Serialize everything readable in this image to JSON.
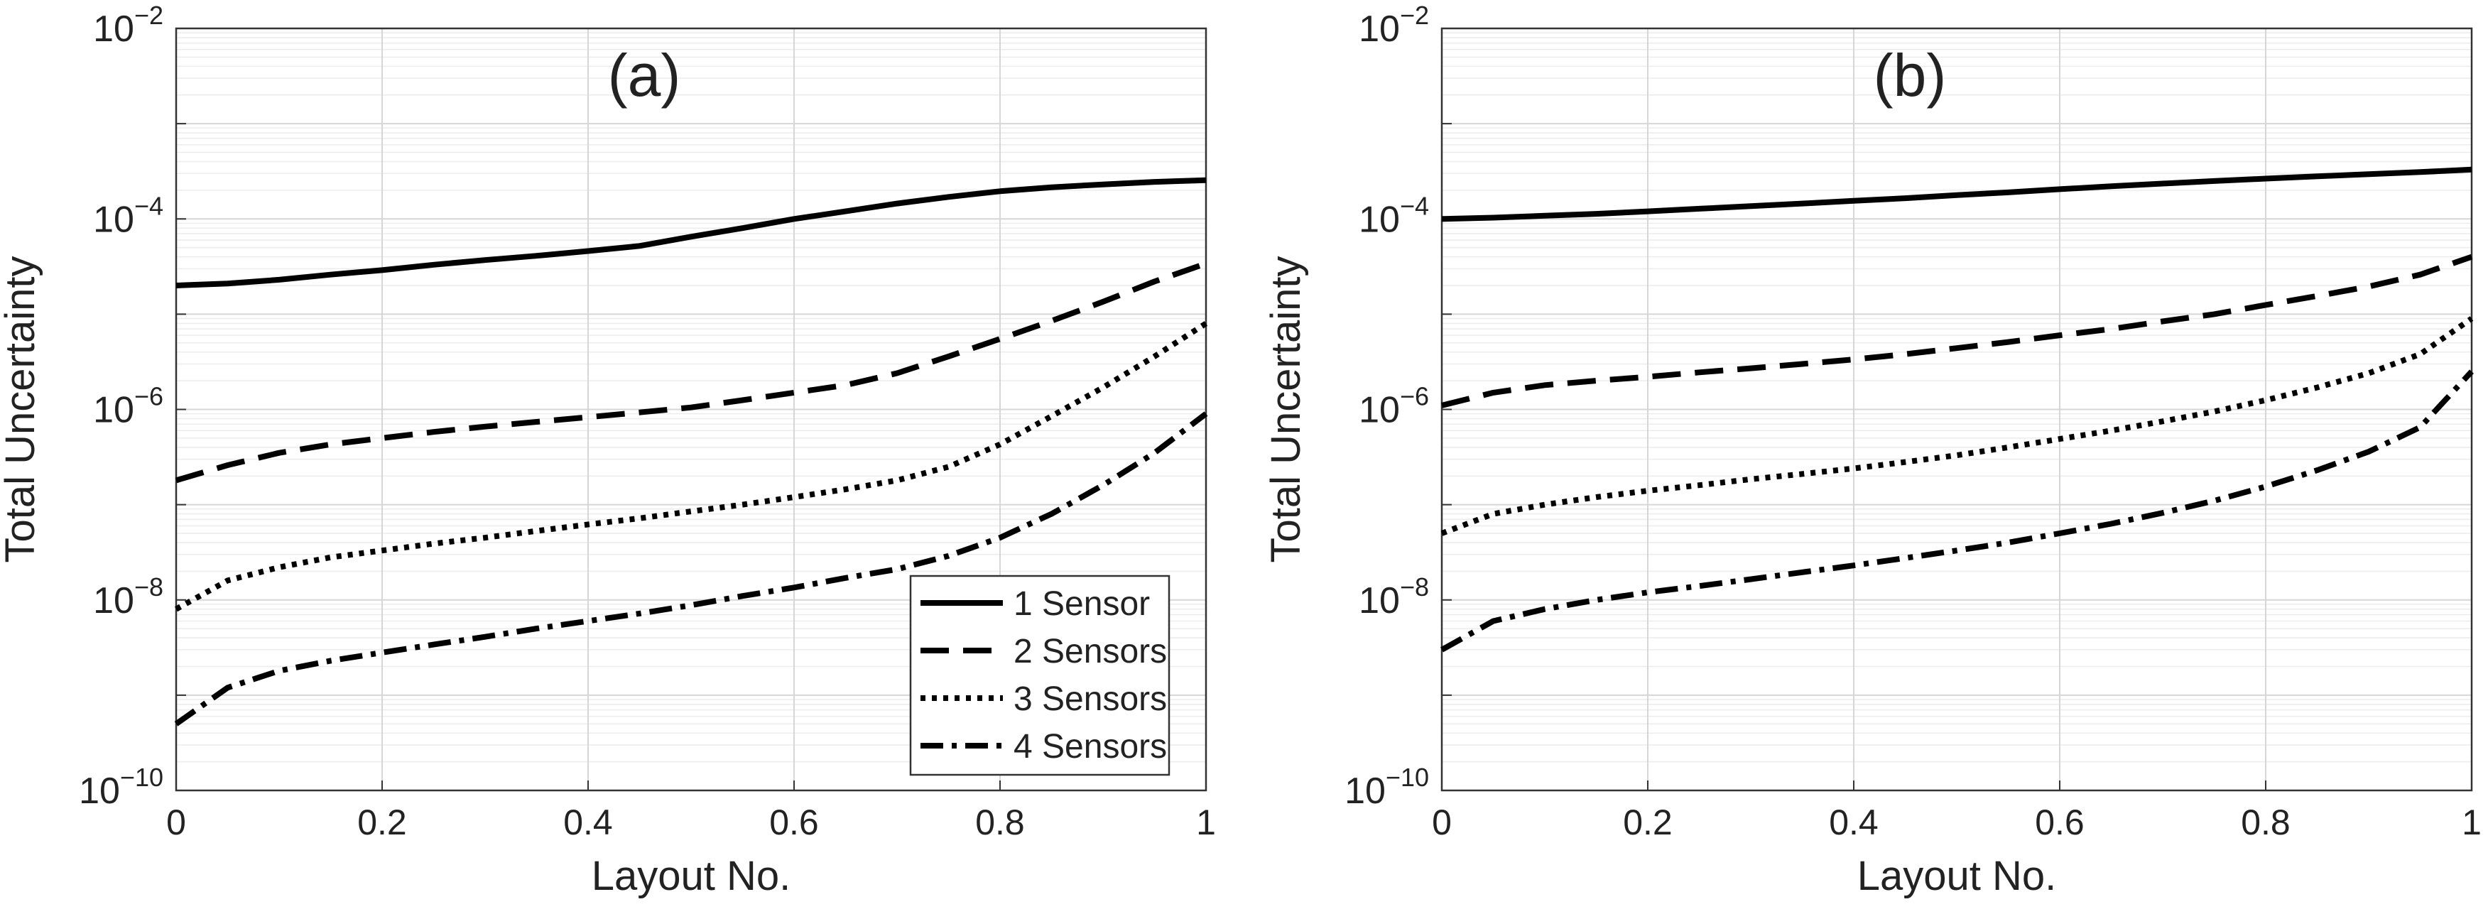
{
  "chart_data": [
    {
      "type": "line",
      "panel_label": "(a)",
      "xlabel": "Layout No.",
      "ylabel": "Total Uncertainty",
      "yscale": "log",
      "xlim": [
        0,
        1
      ],
      "ylim_exp": [
        -10,
        -2
      ],
      "xticks": [
        "0",
        "0.2",
        "0.4",
        "0.6",
        "0.8",
        "1"
      ],
      "ytick_exponents": [
        "-10",
        "-8",
        "-6",
        "-4",
        "-2"
      ],
      "grid": true,
      "legend_position": "bottom-right",
      "x": [
        0,
        0.05,
        0.1,
        0.15,
        0.2,
        0.25,
        0.3,
        0.35,
        0.4,
        0.45,
        0.5,
        0.55,
        0.6,
        0.65,
        0.7,
        0.75,
        0.8,
        0.85,
        0.9,
        0.95,
        1.0
      ],
      "series": [
        {
          "name": "1 Sensor",
          "style": "solid",
          "values": [
            2e-05,
            2.1e-05,
            2.3e-05,
            2.6e-05,
            2.9e-05,
            3.3e-05,
            3.7e-05,
            4.1e-05,
            4.6e-05,
            5.2e-05,
            6.5e-05,
            8e-05,
            0.0001,
            0.00012,
            0.000145,
            0.00017,
            0.000195,
            0.000215,
            0.00023,
            0.000245,
            0.000255
          ]
        },
        {
          "name": "2 Sensors",
          "style": "dashed",
          "values": [
            1.8e-07,
            2.6e-07,
            3.5e-07,
            4.3e-07,
            5e-07,
            5.8e-07,
            6.6e-07,
            7.4e-07,
            8.3e-07,
            9.3e-07,
            1.05e-06,
            1.25e-06,
            1.5e-06,
            1.8e-06,
            2.4e-06,
            3.6e-06,
            5.5e-06,
            8.5e-06,
            1.35e-05,
            2.2e-05,
            3.4e-05
          ]
        },
        {
          "name": "3 Sensors",
          "style": "dotted",
          "values": [
            8e-09,
            1.6e-08,
            2.2e-08,
            2.8e-08,
            3.3e-08,
            3.9e-08,
            4.5e-08,
            5.3e-08,
            6.2e-08,
            7.2e-08,
            8.5e-08,
            1e-07,
            1.2e-07,
            1.45e-07,
            1.8e-07,
            2.5e-07,
            4.3e-07,
            8.5e-07,
            1.7e-06,
            3.6e-06,
            8e-06
          ]
        },
        {
          "name": "4 Sensors",
          "style": "dashdot",
          "values": [
            5e-10,
            1.2e-09,
            1.8e-09,
            2.3e-09,
            2.8e-09,
            3.4e-09,
            4.1e-09,
            5e-09,
            6e-09,
            7.2e-09,
            8.8e-09,
            1.1e-08,
            1.35e-08,
            1.7e-08,
            2.1e-08,
            2.9e-08,
            4.5e-08,
            8e-08,
            1.6e-07,
            3.5e-07,
            9e-07
          ]
        }
      ]
    },
    {
      "type": "line",
      "panel_label": "(b)",
      "xlabel": "Layout No.",
      "ylabel": "Total Uncertainty",
      "yscale": "log",
      "xlim": [
        0,
        1
      ],
      "ylim_exp": [
        -10,
        -2
      ],
      "xticks": [
        "0",
        "0.2",
        "0.4",
        "0.6",
        "0.8",
        "1"
      ],
      "ytick_exponents": [
        "-10",
        "-8",
        "-6",
        "-4",
        "-2"
      ],
      "grid": true,
      "x": [
        0,
        0.05,
        0.1,
        0.15,
        0.2,
        0.25,
        0.3,
        0.35,
        0.4,
        0.45,
        0.5,
        0.55,
        0.6,
        0.65,
        0.7,
        0.75,
        0.8,
        0.85,
        0.9,
        0.95,
        1.0
      ],
      "series": [
        {
          "name": "1 Sensor",
          "style": "solid",
          "values": [
            0.0001,
            0.000103,
            0.000108,
            0.000113,
            0.00012,
            0.000128,
            0.000136,
            0.000145,
            0.000155,
            0.000165,
            0.000178,
            0.00019,
            0.000205,
            0.00022,
            0.000235,
            0.00025,
            0.000265,
            0.00028,
            0.000295,
            0.00031,
            0.00033
          ]
        },
        {
          "name": "2 Sensors",
          "style": "dashed",
          "values": [
            1.1e-06,
            1.5e-06,
            1.8e-06,
            2e-06,
            2.2e-06,
            2.45e-06,
            2.7e-06,
            3e-06,
            3.35e-06,
            3.8e-06,
            4.4e-06,
            5.1e-06,
            6e-06,
            7e-06,
            8.4e-06,
            1e-05,
            1.25e-05,
            1.55e-05,
            1.95e-05,
            2.6e-05,
            4e-05
          ]
        },
        {
          "name": "3 Sensors",
          "style": "dotted",
          "values": [
            5e-08,
            8e-08,
            1e-07,
            1.2e-07,
            1.4e-07,
            1.6e-07,
            1.85e-07,
            2.1e-07,
            2.4e-07,
            2.8e-07,
            3.3e-07,
            4e-07,
            4.9e-07,
            6e-07,
            7.5e-07,
            9.5e-07,
            1.25e-06,
            1.7e-06,
            2.4e-06,
            3.8e-06,
            9e-06
          ]
        },
        {
          "name": "4 Sensors",
          "style": "dashdot",
          "values": [
            3e-09,
            6e-09,
            8e-09,
            1e-08,
            1.2e-08,
            1.4e-08,
            1.65e-08,
            1.95e-08,
            2.3e-08,
            2.75e-08,
            3.3e-08,
            4e-08,
            5e-08,
            6.3e-08,
            8.2e-08,
            1.1e-07,
            1.55e-07,
            2.3e-07,
            3.6e-07,
            6.5e-07,
            2.5e-06
          ]
        }
      ]
    }
  ]
}
